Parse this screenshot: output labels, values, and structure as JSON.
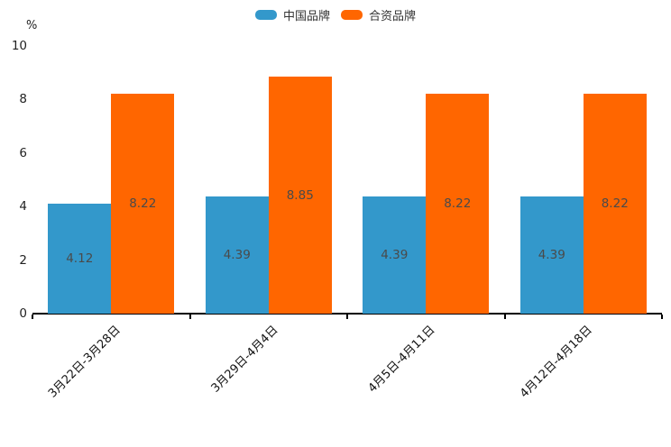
{
  "chart_data": {
    "type": "bar",
    "categories": [
      "3月22日-3月28日",
      "3月29日-4月4日",
      "4月5日-4月11日",
      "4月12日-4月18日"
    ],
    "series": [
      {
        "name": "中国品牌",
        "color": "#3398cb",
        "values": [
          4.12,
          4.39,
          4.39,
          4.39
        ]
      },
      {
        "name": "合资品牌",
        "color": "#ff6600",
        "values": [
          8.22,
          8.85,
          8.22,
          8.22
        ]
      }
    ],
    "ylabel": "%",
    "ylim": [
      0,
      10
    ],
    "yticks": [
      0,
      2,
      4,
      6,
      8,
      10
    ],
    "grid": false,
    "legend_position": "top-center",
    "value_labels": true,
    "value_label_format": "2-decimals",
    "xtick_rotation": 45
  }
}
